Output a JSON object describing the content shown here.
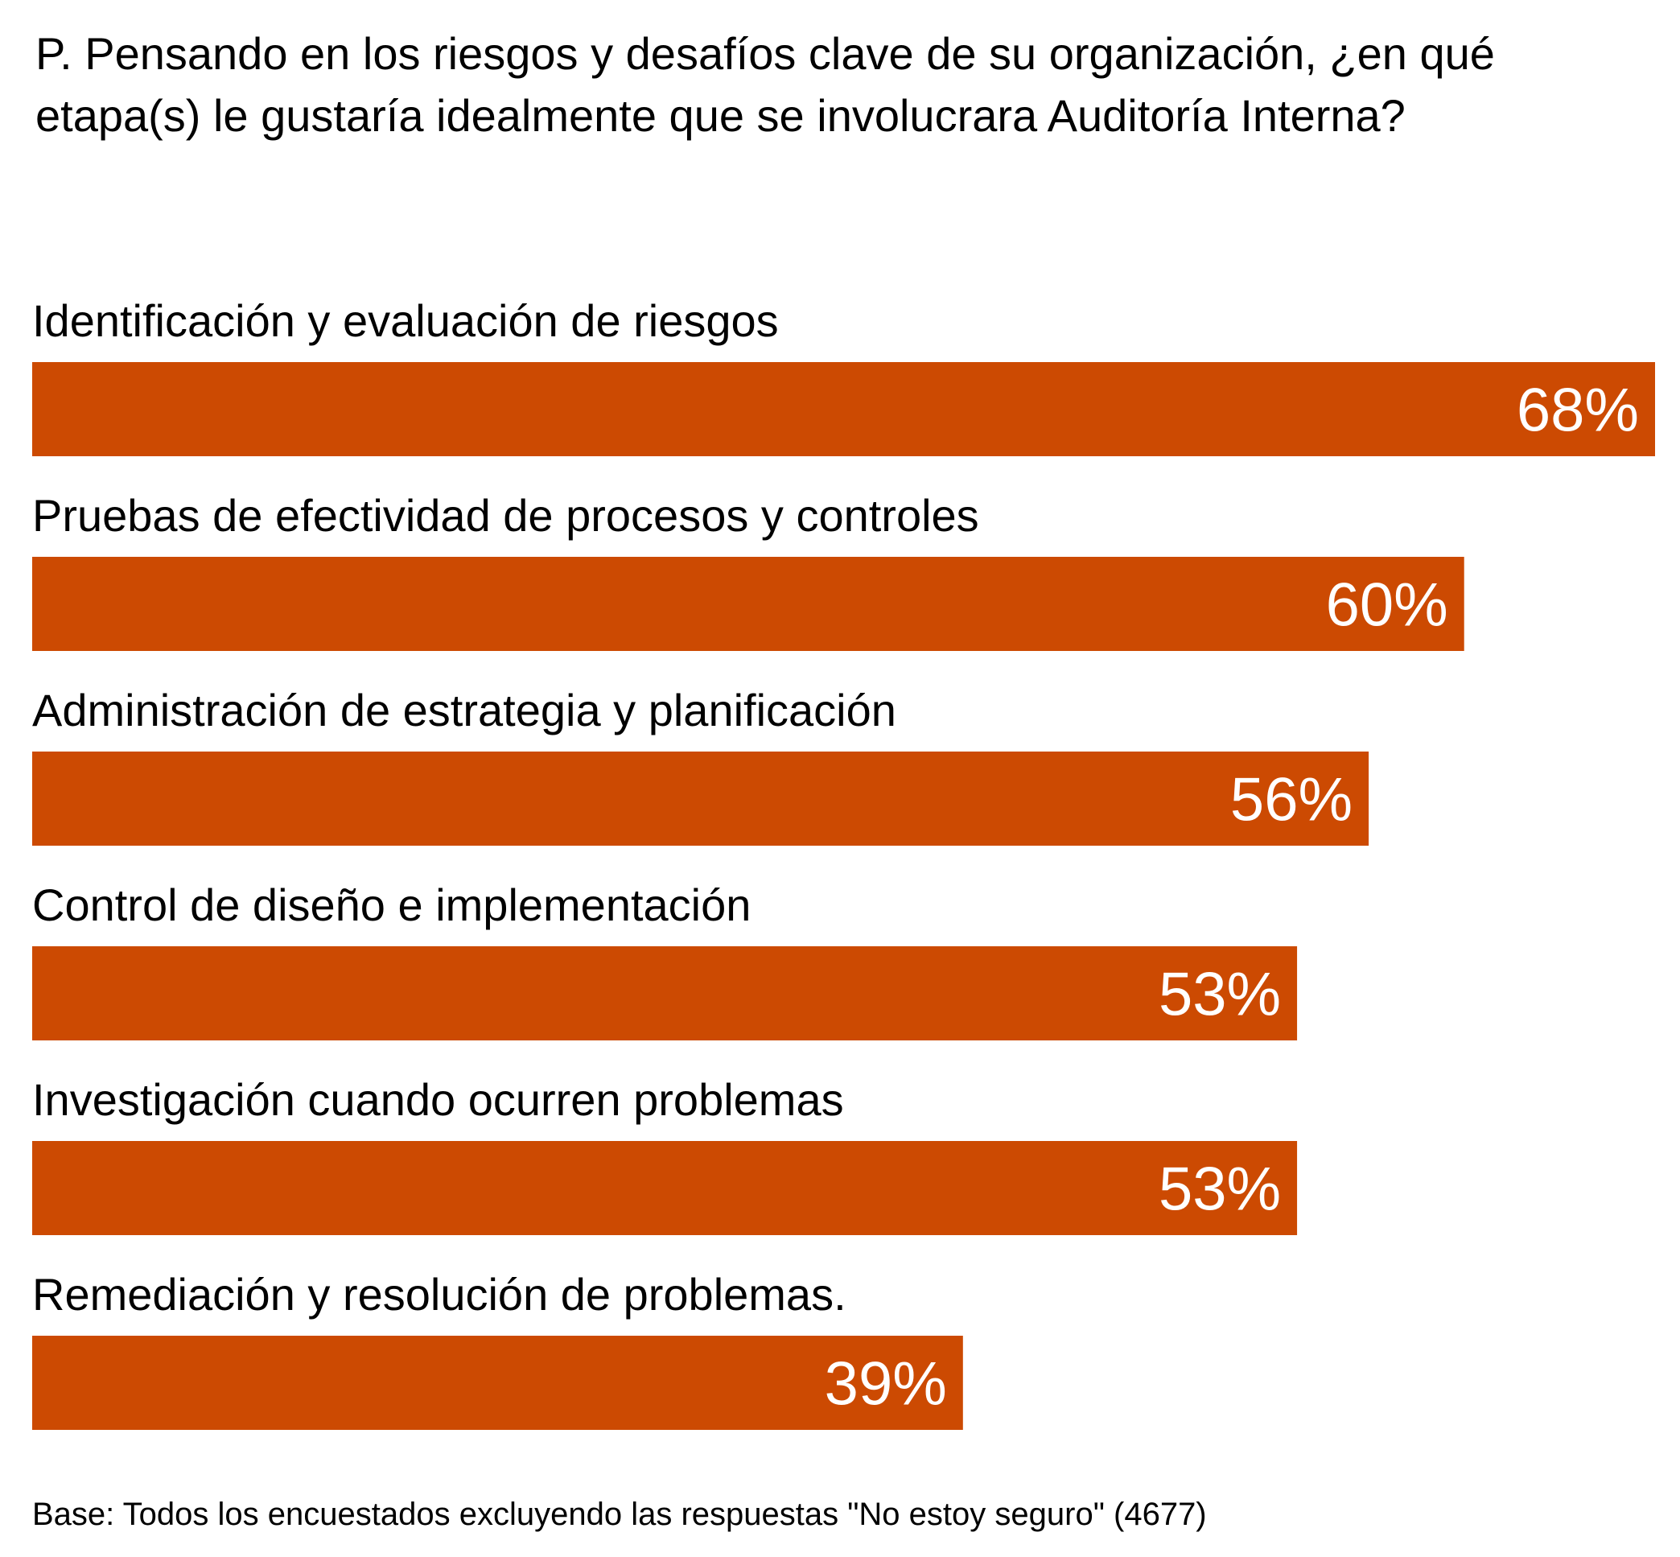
{
  "question": "P. Pensando en los riesgos y desafíos clave de su organización, ¿en qué etapa(s) le gustaría idealmente que se involucrara Auditoría Interna?",
  "base_note": "Base: Todos los encuestados excluyendo las respuestas \"No estoy seguro\" (4677)",
  "colors": {
    "bar": "#CC4A02",
    "bar_text": "#ffffff",
    "text": "#000000"
  },
  "chart_data": {
    "type": "bar",
    "orientation": "horizontal",
    "title": "P. Pensando en los riesgos y desafíos clave de su organización, ¿en qué etapa(s) le gustaría idealmente que se involucrara Auditoría Interna?",
    "categories": [
      "Identificación y evaluación de riesgos",
      "Pruebas de efectividad de procesos y controles",
      "Administración de estrategia y planificación",
      "Control de diseño e implementación",
      "Investigación cuando ocurren problemas",
      "Remediación y resolución de problemas."
    ],
    "values": [
      68,
      60,
      56,
      53,
      53,
      39
    ],
    "value_labels": [
      "68%",
      "60%",
      "56%",
      "53%",
      "53%",
      "39%"
    ],
    "unit": "%",
    "xlabel": "",
    "ylabel": "",
    "grid": false,
    "legend": "none"
  }
}
